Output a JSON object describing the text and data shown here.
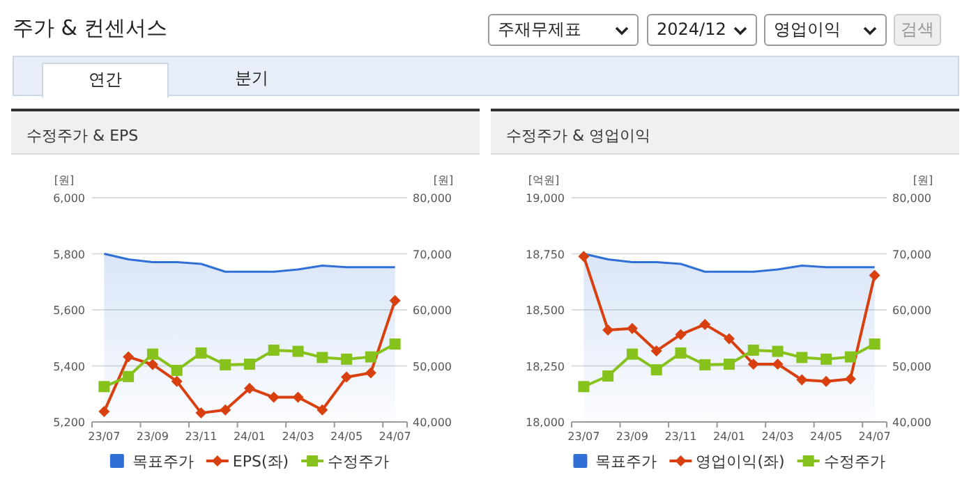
{
  "chart_data": [
    {
      "type": "other",
      "title": "주가 & 컨센서스",
      "annotations": [
        "주재무제표",
        "2024/12",
        "영업이익",
        "검색",
        "연간",
        "분기"
      ]
    },
    {
      "type": "line",
      "title": "수정주가 & EPS",
      "ylabel": "[원]",
      "y2label": "[원]",
      "categories": [
        "23/07",
        null,
        "23/09",
        null,
        "23/11",
        null,
        "24/01",
        null,
        "24/03",
        null,
        "24/05",
        null,
        "24/07"
      ],
      "series": [
        {
          "name": "목표주가",
          "type": "area",
          "axis": "y2",
          "color": "#2f6fd6",
          "marker": "none",
          "values": [
            70000,
            69000,
            68500,
            68500,
            68200,
            66800,
            66800,
            66800,
            67200,
            67900,
            67600,
            67600,
            67600
          ]
        },
        {
          "name": "EPS(좌)",
          "type": "line",
          "color": "#d9400f",
          "marker": "diamond",
          "values": [
            5237,
            5432,
            5405,
            5345,
            5232,
            5243,
            5320,
            5288,
            5288,
            5243,
            5360,
            5375,
            5633
          ]
        },
        {
          "name": "수정주가",
          "type": "line",
          "axis": "y2",
          "color": "#86c21b",
          "marker": "square",
          "values": [
            46300,
            48100,
            52100,
            49200,
            52300,
            50200,
            50300,
            52800,
            52600,
            51500,
            51200,
            51600,
            53900
          ]
        }
      ],
      "ylim": [
        5200,
        6000
      ],
      "yticks": [
        {
          "value": 5200,
          "label": "5,200"
        },
        {
          "value": 5400,
          "label": "5,400"
        },
        {
          "value": 5600,
          "label": "5,600"
        },
        {
          "value": 5800,
          "label": "5,800"
        },
        {
          "value": 6000,
          "label": "6,000"
        }
      ],
      "y2lim": [
        40000,
        80000
      ],
      "y2ticks": [
        {
          "value": 40000,
          "label": "40,000"
        },
        {
          "value": 50000,
          "label": "50,000"
        },
        {
          "value": 60000,
          "label": "60,000"
        },
        {
          "value": 70000,
          "label": "70,000"
        },
        {
          "value": 80000,
          "label": "80,000"
        }
      ],
      "grid": "y",
      "legend": "bottom"
    },
    {
      "type": "line",
      "title": "수정주가 & 영업이익",
      "ylabel": "[억원]",
      "y2label": "[원]",
      "categories": [
        "23/07",
        null,
        "23/09",
        null,
        "23/11",
        null,
        "24/01",
        null,
        "24/03",
        null,
        "24/05",
        null,
        "24/07"
      ],
      "series": [
        {
          "name": "목표주가",
          "type": "area",
          "axis": "y2",
          "color": "#2f6fd6",
          "marker": "none",
          "values": [
            70000,
            69000,
            68500,
            68500,
            68200,
            66800,
            66800,
            66800,
            67200,
            67900,
            67600,
            67600,
            67600
          ]
        },
        {
          "name": "영업이익(좌)",
          "type": "line",
          "color": "#d9400f",
          "marker": "diamond",
          "values": [
            18738,
            18410,
            18417,
            18317,
            18390,
            18435,
            18371,
            18258,
            18258,
            18188,
            18181,
            18192,
            18654
          ]
        },
        {
          "name": "수정주가",
          "type": "line",
          "axis": "y2",
          "color": "#86c21b",
          "marker": "square",
          "values": [
            46300,
            48200,
            52100,
            49300,
            52300,
            50200,
            50300,
            52800,
            52600,
            51500,
            51200,
            51600,
            53900
          ]
        }
      ],
      "ylim": [
        18000,
        19000
      ],
      "yticks": [
        {
          "value": 18000,
          "label": "18,000"
        },
        {
          "value": 18250,
          "label": "18,250"
        },
        {
          "value": 18500,
          "label": "18,500"
        },
        {
          "value": 18750,
          "label": "18,750"
        },
        {
          "value": 19000,
          "label": "19,000"
        }
      ],
      "y2lim": [
        40000,
        80000
      ],
      "y2ticks": [
        {
          "value": 40000,
          "label": "40,000"
        },
        {
          "value": 50000,
          "label": "50,000"
        },
        {
          "value": 60000,
          "label": "60,000"
        },
        {
          "value": 70000,
          "label": "70,000"
        },
        {
          "value": 80000,
          "label": "80,000"
        }
      ],
      "grid": "y",
      "legend": "bottom"
    }
  ]
}
